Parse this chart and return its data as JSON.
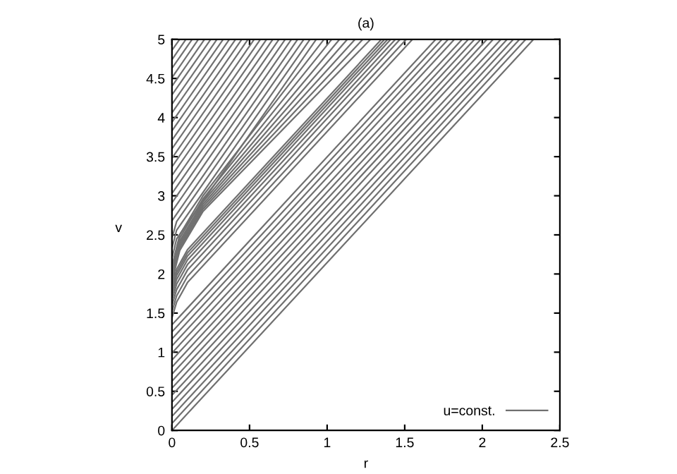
{
  "chart_data": {
    "type": "line",
    "title": "(a)",
    "xlabel": "r",
    "ylabel": "v",
    "xlim": [
      0,
      2.5
    ],
    "ylim": [
      0,
      5
    ],
    "xticks": [
      0,
      0.5,
      1,
      1.5,
      2,
      2.5
    ],
    "yticks": [
      0,
      0.5,
      1,
      1.5,
      2,
      2.5,
      3,
      3.5,
      4,
      4.5,
      5
    ],
    "legend": "bottom right",
    "line_style": "solid",
    "series": [
      {
        "name": "u=const.",
        "color": "#707070",
        "x": [
          0,
          2.33
        ],
        "values": [
          0,
          5
        ]
      },
      {
        "color": "#707070",
        "x": [
          0,
          2.28
        ],
        "values": [
          0.09,
          5
        ]
      },
      {
        "color": "#707070",
        "x": [
          0,
          2.24
        ],
        "values": [
          0.18,
          5
        ]
      },
      {
        "color": "#707070",
        "x": [
          0,
          2.2
        ],
        "values": [
          0.27,
          5
        ]
      },
      {
        "color": "#707070",
        "x": [
          0,
          2.16
        ],
        "values": [
          0.36,
          5
        ]
      },
      {
        "color": "#707070",
        "x": [
          0,
          2.12
        ],
        "values": [
          0.45,
          5
        ]
      },
      {
        "color": "#707070",
        "x": [
          0,
          2.07
        ],
        "values": [
          0.54,
          5
        ]
      },
      {
        "color": "#707070",
        "x": [
          0,
          2.03
        ],
        "values": [
          0.63,
          5
        ]
      },
      {
        "color": "#707070",
        "x": [
          0,
          1.99
        ],
        "values": [
          0.72,
          5
        ]
      },
      {
        "color": "#707070",
        "x": [
          0,
          1.95
        ],
        "values": [
          0.81,
          5
        ]
      },
      {
        "color": "#707070",
        "x": [
          0,
          1.91
        ],
        "values": [
          0.9,
          5
        ]
      },
      {
        "color": "#707070",
        "x": [
          0,
          1.87
        ],
        "values": [
          0.99,
          5
        ]
      },
      {
        "color": "#707070",
        "x": [
          0,
          1.82
        ],
        "values": [
          1.08,
          5
        ]
      },
      {
        "color": "#707070",
        "x": [
          0,
          1.78
        ],
        "values": [
          1.17,
          5
        ]
      },
      {
        "color": "#707070",
        "x": [
          0,
          1.74
        ],
        "values": [
          1.26,
          5
        ]
      },
      {
        "color": "#707070",
        "x": [
          0,
          1.7
        ],
        "values": [
          1.35,
          5
        ]
      },
      {
        "color": "#707070",
        "x": [
          0,
          0.03,
          0.1,
          1.55
        ],
        "values": [
          1.44,
          1.64,
          1.89,
          5
        ]
      },
      {
        "color": "#707070",
        "x": [
          0,
          0.03,
          0.1,
          1.51
        ],
        "values": [
          1.52,
          1.72,
          1.97,
          5
        ]
      },
      {
        "color": "#707070",
        "x": [
          0,
          0.03,
          0.1,
          1.47
        ],
        "values": [
          1.6,
          1.8,
          2.05,
          5
        ]
      },
      {
        "color": "#707070",
        "x": [
          0,
          0.03,
          0.1,
          1.44
        ],
        "values": [
          1.67,
          1.87,
          2.12,
          5
        ]
      },
      {
        "color": "#707070",
        "x": [
          0,
          0.03,
          0.1,
          1.41
        ],
        "values": [
          1.73,
          1.93,
          2.18,
          5
        ]
      },
      {
        "color": "#707070",
        "x": [
          0,
          0.03,
          0.1,
          1.39
        ],
        "values": [
          1.78,
          1.98,
          2.23,
          5
        ]
      },
      {
        "color": "#707070",
        "x": [
          0,
          0.03,
          0.1,
          1.37
        ],
        "values": [
          1.82,
          2.02,
          2.27,
          5
        ]
      },
      {
        "color": "#707070",
        "x": [
          0,
          0.03,
          0.1,
          1.35
        ],
        "values": [
          1.86,
          2.06,
          2.31,
          5
        ]
      },
      {
        "color": "#707070",
        "x": [
          0,
          0.05,
          0.2,
          1.28
        ],
        "values": [
          1.9,
          2.3,
          2.8,
          5
        ]
      },
      {
        "color": "#707070",
        "x": [
          0,
          0.05,
          0.2,
          1.23
        ],
        "values": [
          1.93,
          2.33,
          2.83,
          5
        ]
      },
      {
        "color": "#707070",
        "x": [
          0,
          0.05,
          0.2,
          1.18
        ],
        "values": [
          1.96,
          2.36,
          2.86,
          5
        ]
      },
      {
        "color": "#707070",
        "x": [
          0,
          0.05,
          0.2,
          1.13
        ],
        "values": [
          1.99,
          2.39,
          2.89,
          5
        ]
      },
      {
        "color": "#707070",
        "x": [
          0,
          0.05,
          0.2,
          1.08
        ],
        "values": [
          2.02,
          2.42,
          2.92,
          5
        ]
      },
      {
        "color": "#707070",
        "x": [
          0,
          0.05,
          0.2,
          1.03
        ],
        "values": [
          2.06,
          2.46,
          2.96,
          5
        ]
      },
      {
        "color": "#707070",
        "x": [
          0,
          0.05,
          0.2,
          0.98
        ],
        "values": [
          2.1,
          2.5,
          3.0,
          5
        ]
      },
      {
        "color": "#707070",
        "x": [
          0,
          0.03,
          0.93
        ],
        "values": [
          2.2,
          2.45,
          5
        ]
      },
      {
        "color": "#707070",
        "x": [
          0,
          0.03,
          0.89
        ],
        "values": [
          2.33,
          2.56,
          5
        ]
      },
      {
        "color": "#707070",
        "x": [
          0,
          0.03,
          0.85
        ],
        "values": [
          2.46,
          2.67,
          5
        ]
      },
      {
        "color": "#707070",
        "x": [
          0,
          0.81
        ],
        "values": [
          2.68,
          5
        ]
      },
      {
        "color": "#707070",
        "x": [
          0,
          0.77
        ],
        "values": [
          2.8,
          5
        ]
      },
      {
        "color": "#707070",
        "x": [
          0,
          0.73
        ],
        "values": [
          2.91,
          5
        ]
      },
      {
        "color": "#707070",
        "x": [
          0,
          0.69
        ],
        "values": [
          3.03,
          5
        ]
      },
      {
        "color": "#707070",
        "x": [
          0,
          0.65
        ],
        "values": [
          3.14,
          5
        ]
      },
      {
        "color": "#707070",
        "x": [
          0,
          0.61
        ],
        "values": [
          3.26,
          5
        ]
      },
      {
        "color": "#707070",
        "x": [
          0,
          0.57
        ],
        "values": [
          3.37,
          5
        ]
      },
      {
        "color": "#707070",
        "x": [
          0,
          0.53
        ],
        "values": [
          3.48,
          5
        ]
      },
      {
        "color": "#707070",
        "x": [
          0,
          0.49
        ],
        "values": [
          3.6,
          5
        ]
      },
      {
        "color": "#707070",
        "x": [
          0,
          0.45
        ],
        "values": [
          3.71,
          5
        ]
      },
      {
        "color": "#707070",
        "x": [
          0,
          0.41
        ],
        "values": [
          3.83,
          5
        ]
      },
      {
        "color": "#707070",
        "x": [
          0,
          0.37
        ],
        "values": [
          3.94,
          5
        ]
      },
      {
        "color": "#707070",
        "x": [
          0,
          0.33
        ],
        "values": [
          4.06,
          5
        ]
      },
      {
        "color": "#707070",
        "x": [
          0,
          0.29
        ],
        "values": [
          4.17,
          5
        ]
      },
      {
        "color": "#707070",
        "x": [
          0,
          0.25
        ],
        "values": [
          4.29,
          5
        ]
      },
      {
        "color": "#707070",
        "x": [
          0,
          0.21
        ],
        "values": [
          4.4,
          5
        ]
      },
      {
        "color": "#707070",
        "x": [
          0,
          0.17
        ],
        "values": [
          4.51,
          5
        ]
      },
      {
        "color": "#707070",
        "x": [
          0,
          0.13
        ],
        "values": [
          4.63,
          5
        ]
      },
      {
        "color": "#707070",
        "x": [
          0,
          0.09
        ],
        "values": [
          4.74,
          5
        ]
      },
      {
        "color": "#707070",
        "x": [
          0,
          0.05
        ],
        "values": [
          4.86,
          5
        ]
      }
    ]
  }
}
